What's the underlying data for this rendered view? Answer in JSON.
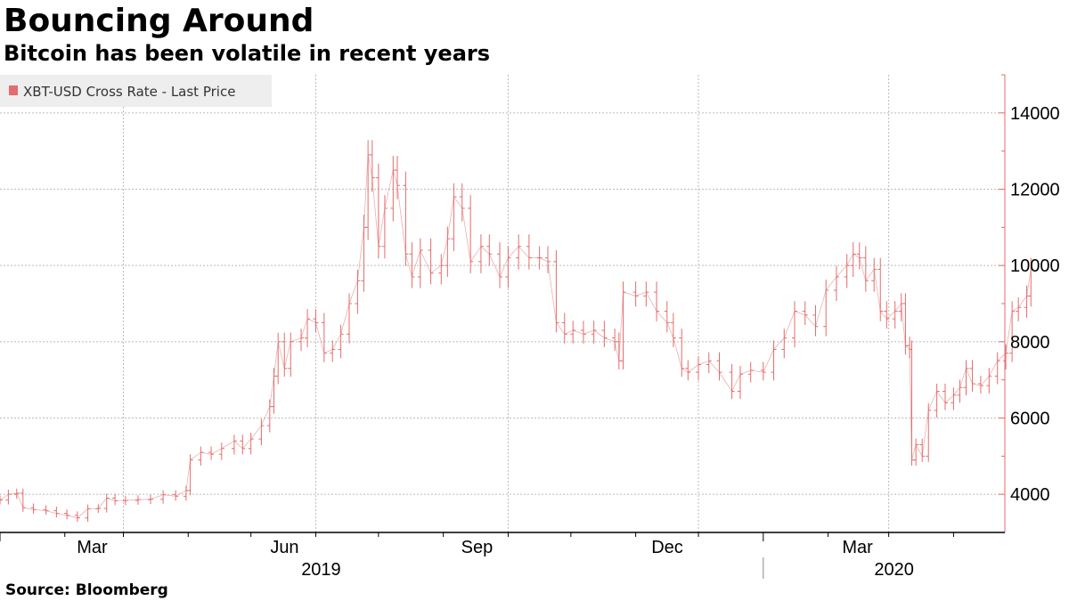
{
  "header": {
    "title": "Bouncing Around",
    "subtitle": "Bitcoin has been volatile in recent years"
  },
  "footer": {
    "source": "Source: Bloomberg"
  },
  "colors": {
    "series": "#e36c6c",
    "axis": "#e36c6c",
    "grid": "#bbbbbb"
  },
  "chart_data": {
    "type": "line",
    "style": "ohlc-bars",
    "title": "Bouncing Around",
    "subtitle": "Bitcoin has been volatile in recent years",
    "grid": true,
    "legend_position": "top-left",
    "y_axis_side": "right",
    "ylim": [
      3000,
      15000
    ],
    "yticks": [
      4000,
      6000,
      8000,
      10000,
      12000,
      14000
    ],
    "ytick_labels": [
      "4000",
      "6000",
      "8000",
      "10000",
      "12000",
      "14000"
    ],
    "xlim": [
      "2019-01-01",
      "2020-04-20"
    ],
    "xticks": [
      {
        "date": "2019-03-01",
        "label": "Mar"
      },
      {
        "date": "2019-06-01",
        "label": "Jun"
      },
      {
        "date": "2019-09-01",
        "label": "Sep"
      },
      {
        "date": "2019-12-01",
        "label": "Dec"
      },
      {
        "date": "2020-03-01",
        "label": "Mar"
      }
    ],
    "year_labels": [
      {
        "date": "2019-06-01",
        "label": "2019"
      },
      {
        "date": "2020-03-01",
        "label": "2020"
      }
    ],
    "series": [
      {
        "name": "XBT-USD Cross Rate - Last Price",
        "points": [
          [
            "2019-01-01",
            3850
          ],
          [
            "2019-01-05",
            4000
          ],
          [
            "2019-01-09",
            4030
          ],
          [
            "2019-01-12",
            3650
          ],
          [
            "2019-01-17",
            3600
          ],
          [
            "2019-01-23",
            3570
          ],
          [
            "2019-01-28",
            3500
          ],
          [
            "2019-02-02",
            3450
          ],
          [
            "2019-02-07",
            3380
          ],
          [
            "2019-02-12",
            3620
          ],
          [
            "2019-02-17",
            3630
          ],
          [
            "2019-02-21",
            3900
          ],
          [
            "2019-02-25",
            3830
          ],
          [
            "2019-03-02",
            3840
          ],
          [
            "2019-03-08",
            3860
          ],
          [
            "2019-03-14",
            3870
          ],
          [
            "2019-03-20",
            3990
          ],
          [
            "2019-03-26",
            3950
          ],
          [
            "2019-03-31",
            4100
          ],
          [
            "2019-04-02",
            4900
          ],
          [
            "2019-04-07",
            5100
          ],
          [
            "2019-04-12",
            5050
          ],
          [
            "2019-04-17",
            5200
          ],
          [
            "2019-04-23",
            5400
          ],
          [
            "2019-04-27",
            5200
          ],
          [
            "2019-05-01",
            5450
          ],
          [
            "2019-05-06",
            5800
          ],
          [
            "2019-05-10",
            6300
          ],
          [
            "2019-05-12",
            7100
          ],
          [
            "2019-05-14",
            8000
          ],
          [
            "2019-05-17",
            7300
          ],
          [
            "2019-05-20",
            8000
          ],
          [
            "2019-05-25",
            8100
          ],
          [
            "2019-05-28",
            8600
          ],
          [
            "2019-06-01",
            8500
          ],
          [
            "2019-06-05",
            7700
          ],
          [
            "2019-06-09",
            7800
          ],
          [
            "2019-06-13",
            8200
          ],
          [
            "2019-06-17",
            9000
          ],
          [
            "2019-06-21",
            9600
          ],
          [
            "2019-06-24",
            11000
          ],
          [
            "2019-06-26",
            12900
          ],
          [
            "2019-06-28",
            12300
          ],
          [
            "2019-07-01",
            10500
          ],
          [
            "2019-07-04",
            11500
          ],
          [
            "2019-07-08",
            12500
          ],
          [
            "2019-07-10",
            12100
          ],
          [
            "2019-07-14",
            10300
          ],
          [
            "2019-07-17",
            9700
          ],
          [
            "2019-07-21",
            10400
          ],
          [
            "2019-07-26",
            9800
          ],
          [
            "2019-07-31",
            10000
          ],
          [
            "2019-08-03",
            10700
          ],
          [
            "2019-08-06",
            11800
          ],
          [
            "2019-08-10",
            11500
          ],
          [
            "2019-08-14",
            10100
          ],
          [
            "2019-08-19",
            10500
          ],
          [
            "2019-08-23",
            10300
          ],
          [
            "2019-08-28",
            9700
          ],
          [
            "2019-09-01",
            10200
          ],
          [
            "2019-09-06",
            10500
          ],
          [
            "2019-09-11",
            10200
          ],
          [
            "2019-09-16",
            10200
          ],
          [
            "2019-09-20",
            10100
          ],
          [
            "2019-09-24",
            8500
          ],
          [
            "2019-09-28",
            8200
          ],
          [
            "2019-10-02",
            8300
          ],
          [
            "2019-10-07",
            8200
          ],
          [
            "2019-10-12",
            8300
          ],
          [
            "2019-10-17",
            8100
          ],
          [
            "2019-10-22",
            8000
          ],
          [
            "2019-10-24",
            7500
          ],
          [
            "2019-10-26",
            9300
          ],
          [
            "2019-11-01",
            9200
          ],
          [
            "2019-11-06",
            9300
          ],
          [
            "2019-11-11",
            8800
          ],
          [
            "2019-11-16",
            8500
          ],
          [
            "2019-11-19",
            8100
          ],
          [
            "2019-11-23",
            7300
          ],
          [
            "2019-11-26",
            7200
          ],
          [
            "2019-12-01",
            7400
          ],
          [
            "2019-12-06",
            7500
          ],
          [
            "2019-12-11",
            7200
          ],
          [
            "2019-12-17",
            6700
          ],
          [
            "2019-12-21",
            7150
          ],
          [
            "2019-12-26",
            7250
          ],
          [
            "2020-01-01",
            7200
          ],
          [
            "2020-01-06",
            7800
          ],
          [
            "2020-01-11",
            8100
          ],
          [
            "2020-01-16",
            8800
          ],
          [
            "2020-01-21",
            8700
          ],
          [
            "2020-01-26",
            8400
          ],
          [
            "2020-01-31",
            9350
          ],
          [
            "2020-02-05",
            9700
          ],
          [
            "2020-02-10",
            10000
          ],
          [
            "2020-02-13",
            10300
          ],
          [
            "2020-02-16",
            10200
          ],
          [
            "2020-02-19",
            9600
          ],
          [
            "2020-02-23",
            9900
          ],
          [
            "2020-02-26",
            8800
          ],
          [
            "2020-02-29",
            8600
          ],
          [
            "2020-03-04",
            8800
          ],
          [
            "2020-03-07",
            9000
          ],
          [
            "2020-03-09",
            7900
          ],
          [
            "2020-03-11",
            7800
          ],
          [
            "2020-03-12",
            4900
          ],
          [
            "2020-03-14",
            5300
          ],
          [
            "2020-03-17",
            5000
          ],
          [
            "2020-03-20",
            6200
          ],
          [
            "2020-03-24",
            6700
          ],
          [
            "2020-03-28",
            6400
          ],
          [
            "2020-04-01",
            6600
          ],
          [
            "2020-04-04",
            6800
          ],
          [
            "2020-04-07",
            7300
          ],
          [
            "2020-04-10",
            6900
          ],
          [
            "2020-04-14",
            6850
          ],
          [
            "2020-04-18",
            7100
          ],
          [
            "2020-04-22",
            7500
          ],
          [
            "2020-04-26",
            7700
          ],
          [
            "2020-04-29",
            8800
          ],
          [
            "2020-05-02",
            8900
          ],
          [
            "2020-05-06",
            9200
          ],
          [
            "2020-05-08",
            9900
          ]
        ]
      }
    ]
  }
}
